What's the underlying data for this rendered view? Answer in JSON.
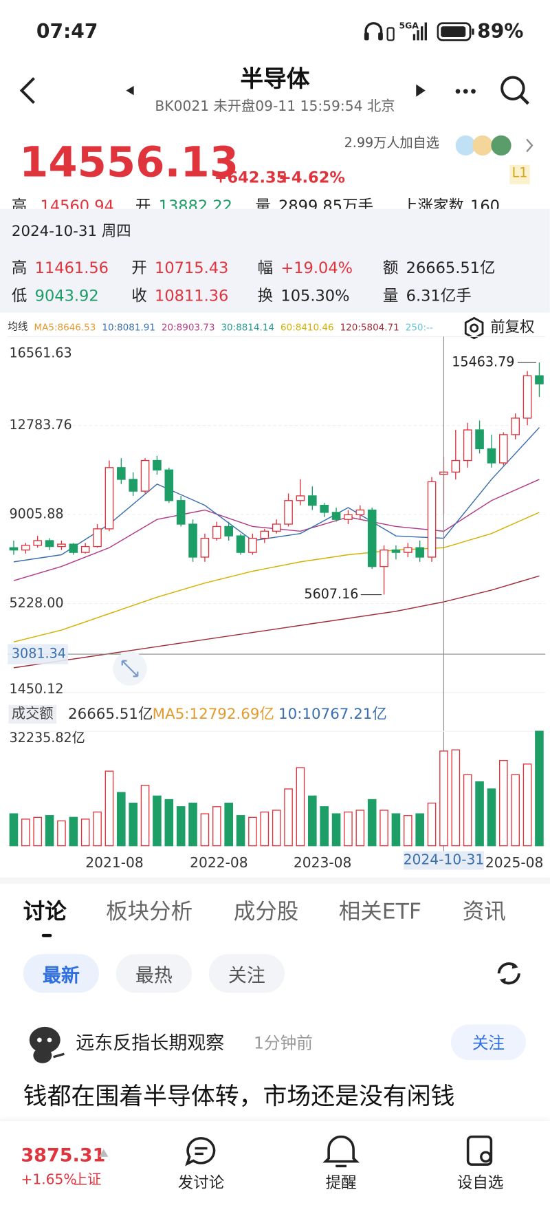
{
  "status_bar": {
    "time": "07:47",
    "network": "5GA",
    "battery": "89%"
  },
  "header": {
    "title": "半导体",
    "subtitle": "BK0021 未开盘09-11 15:59:54 北京"
  },
  "quote": {
    "price": "14556.13",
    "change": "+642.35",
    "change_pct": "+4.62%",
    "followers": "2.99万人加自选",
    "level": "L1"
  },
  "summary_row": [
    {
      "label": "高",
      "value": "14560.94"
    },
    {
      "label": "开",
      "value": "13882.22"
    },
    {
      "label": "量",
      "value": "2899.85万手"
    },
    {
      "label": "上涨家数",
      "value": "160"
    }
  ],
  "tooltip": {
    "date": "2024-10-31 周四",
    "rows": [
      [
        {
          "label": "高",
          "value": "11461.56"
        },
        {
          "label": "开",
          "value": "10715.43"
        },
        {
          "label": "幅",
          "value": "+19.04%"
        },
        {
          "label": "额",
          "value": "26665.51亿"
        }
      ],
      [
        {
          "label": "低",
          "value": "9043.92"
        },
        {
          "label": "收",
          "value": "10811.36"
        },
        {
          "label": "换",
          "value": "105.30%"
        },
        {
          "label": "量",
          "value": "6.31亿手"
        }
      ]
    ]
  },
  "ma_legend": {
    "label": "均线",
    "items": [
      {
        "text": "MA5:8646.53",
        "color": "#e39a2e"
      },
      {
        "text": "10:8081.91",
        "color": "#3a6fb0"
      },
      {
        "text": "20:8903.73",
        "color": "#b03c86"
      },
      {
        "text": "30:8814.14",
        "color": "#2a9a94"
      },
      {
        "text": "60:8410.46",
        "color": "#d4b000"
      },
      {
        "text": "120:5804.71",
        "color": "#a02f3a"
      },
      {
        "text": "250:--",
        "color": "#5fc3d8"
      }
    ],
    "adjust": "前复权"
  },
  "kline": {
    "ylim": [
      1450.12,
      16561.63
    ],
    "yticks": [
      16561.63,
      12783.76,
      {
        "value": 9005.88,
        "label": "9005.88"
      },
      {
        "value": 5228,
        "label": "5228.00"
      },
      1450.12
    ],
    "open": [
      7600,
      7500,
      7700,
      7900,
      7650,
      7750,
      7400,
      7650,
      8400,
      11000,
      10500,
      10000,
      11300,
      10900,
      9600,
      8600,
      7200,
      8000,
      8500,
      8100,
      7400,
      8000,
      8300,
      8600,
      9600,
      9800,
      9400,
      9100,
      8800,
      9000,
      9200,
      6800,
      7500,
      7400,
      7600,
      7200,
      10715.43,
      10811,
      11300,
      12600,
      11800,
      11200,
      12400,
      13100,
      14900
    ],
    "high": [
      7900,
      7800,
      8100,
      8000,
      7900,
      7800,
      7800,
      8600,
      11300,
      11400,
      10800,
      11400,
      11500,
      11000,
      9800,
      8800,
      8200,
      8700,
      8700,
      8200,
      8200,
      8400,
      8800,
      9900,
      10500,
      10200,
      9500,
      9300,
      9200,
      9400,
      9300,
      7700,
      7700,
      7800,
      7900,
      10600,
      11461.56,
      12600,
      12900,
      13000,
      12400,
      12500,
      13300,
      15100,
      15463.79
    ],
    "low": [
      7300,
      7350,
      7600,
      7500,
      7500,
      7300,
      7350,
      7600,
      8300,
      10300,
      9800,
      9900,
      10700,
      9500,
      8500,
      7000,
      7000,
      7900,
      7900,
      7300,
      7300,
      7800,
      8200,
      8500,
      9400,
      9200,
      8900,
      8700,
      8600,
      8800,
      6700,
      5607.16,
      7100,
      7200,
      7000,
      7000,
      9043.92,
      10500,
      11000,
      11600,
      11000,
      11100,
      12200,
      12800,
      14000
    ],
    "close": [
      7500,
      7700,
      7900,
      7650,
      7750,
      7400,
      7650,
      8400,
      11000,
      10500,
      10000,
      11300,
      10900,
      9600,
      8600,
      7200,
      8000,
      8500,
      8100,
      7400,
      8000,
      8300,
      8600,
      9600,
      9800,
      9400,
      9100,
      8800,
      9000,
      9200,
      6800,
      7500,
      7400,
      7600,
      7200,
      10400,
      10811.36,
      11300,
      12600,
      11800,
      11200,
      12400,
      13100,
      14900,
      14556.13
    ],
    "ma_x": [
      0,
      4,
      8,
      12,
      16,
      20,
      24,
      28,
      32,
      36,
      40,
      44
    ],
    "ma": [
      {
        "color": "#a02f3a",
        "values": [
          2500,
          2800,
          3100,
          3400,
          3700,
          4000,
          4300,
          4600,
          4900,
          5300,
          5800,
          6400
        ]
      },
      {
        "color": "#d4b000",
        "values": [
          3600,
          4100,
          4800,
          5500,
          6100,
          6600,
          7000,
          7300,
          7500,
          7600,
          8200,
          9100
        ]
      },
      {
        "color": "#b03c86",
        "values": [
          6200,
          6800,
          7600,
          8800,
          9200,
          8500,
          8300,
          8900,
          8500,
          8300,
          9600,
          10500
        ]
      },
      {
        "color": "#3a6fb0",
        "values": [
          7000,
          7300,
          8600,
          10300,
          9400,
          7900,
          8200,
          9300,
          8100,
          8000,
          10500,
          12700
        ]
      }
    ],
    "crosshair": {
      "value": 3081.34,
      "date": "2024-10-31"
    },
    "up_color": "#e0343d",
    "down_color": "#1c9e66"
  },
  "volume_legend": {
    "label": "成交额",
    "amount": "26665.51亿",
    "ma5": "MA5:12792.69亿",
    "ma10": "10:10767.21亿"
  },
  "volume": {
    "ylim": [
      0,
      32235.82
    ],
    "yticks": [
      {
        "value": 32235.82,
        "label": "32235.82亿"
      }
    ],
    "values": [
      9000,
      7500,
      8000,
      8500,
      7000,
      8000,
      7500,
      9500,
      21000,
      15000,
      12000,
      17000,
      14000,
      13000,
      11000,
      12000,
      9000,
      11000,
      12000,
      8500,
      8000,
      9500,
      10000,
      16000,
      22000,
      14000,
      11000,
      9000,
      9500,
      10000,
      13000,
      10000,
      9000,
      8500,
      9000,
      12000,
      26665.51,
      27000,
      20000,
      18000,
      16000,
      24000,
      20000,
      23000,
      32235.82
    ]
  },
  "x_labels": [
    "2021-08",
    "2022-08",
    "2023-08",
    "2025-08"
  ],
  "tabs": [
    "讨论",
    "板块分析",
    "成分股",
    "相关ETF",
    "资讯"
  ],
  "filters": [
    "最新",
    "最热",
    "关注"
  ],
  "post": {
    "author": "远东反指长期观察",
    "time": "1分钟前",
    "follow": "关注",
    "text": "钱都在围着半导体转，市场还是没有闲钱"
  },
  "bottom_bar": {
    "index_value": "3875.31",
    "index_change": "+1.65%",
    "index_name": "上证",
    "actions": [
      "发讨论",
      "提醒",
      "设自选"
    ]
  }
}
